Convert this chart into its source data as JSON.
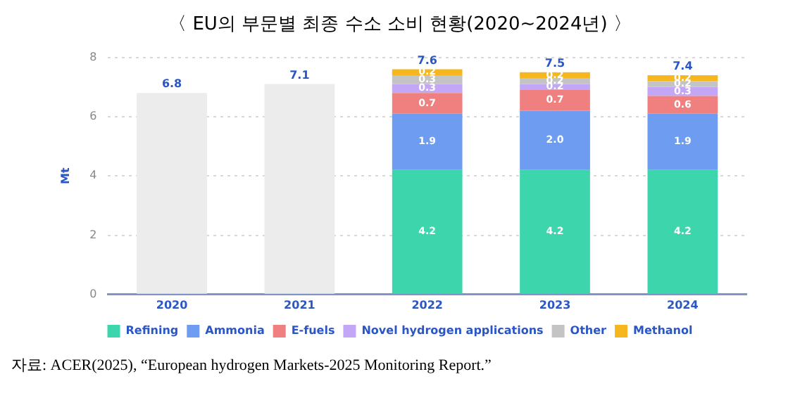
{
  "chart_data": {
    "type": "bar",
    "title": "〈 EU의 부문별 최종 수소 소비 현황(2020~2024년) 〉",
    "ylabel": "Mt",
    "categories": [
      "2020",
      "2021",
      "2022",
      "2023",
      "2024"
    ],
    "stacked": true,
    "series": [
      {
        "color": "#ececec",
        "values": [
          6.8,
          7.1,
          null,
          null,
          null
        ],
        "value_labels": [
          "6.8",
          "7.1",
          null,
          null,
          null
        ]
      },
      {
        "name": "Refining",
        "color": "#3dd6ac",
        "values": [
          null,
          null,
          4.2,
          4.2,
          4.2
        ],
        "value_labels": [
          null,
          null,
          "4.2",
          "4.2",
          "4.2"
        ]
      },
      {
        "name": "Ammonia",
        "color": "#6d9cf0",
        "values": [
          null,
          null,
          1.9,
          2.0,
          1.9
        ],
        "value_labels": [
          null,
          null,
          "1.9",
          "2.0",
          "1.9"
        ]
      },
      {
        "name": "E-fuels",
        "color": "#f07f7f",
        "values": [
          null,
          null,
          0.7,
          0.7,
          0.6
        ],
        "value_labels": [
          null,
          null,
          "0.7",
          "0.7",
          "0.6"
        ]
      },
      {
        "name": "Novel hydrogen applications",
        "color": "#c3a6f5",
        "values": [
          null,
          null,
          0.3,
          0.2,
          0.3
        ],
        "value_labels": [
          null,
          null,
          "0.3",
          "0.2",
          "0.3"
        ]
      },
      {
        "name": "Other",
        "color": "#c4c4c4",
        "values": [
          null,
          null,
          0.3,
          0.2,
          0.2
        ],
        "value_labels": [
          null,
          null,
          "0.3",
          "0.2",
          "0.2"
        ]
      },
      {
        "name": "Methanol",
        "color": "#f5b71d",
        "values": [
          null,
          null,
          0.2,
          0.2,
          0.2
        ],
        "value_labels": [
          null,
          null,
          "0.2",
          "0.2",
          "0.2"
        ]
      }
    ],
    "totals": [
      null,
      null,
      "7.6",
      "7.5",
      "7.4"
    ],
    "ylim": [
      0,
      8
    ],
    "yticks": [
      0,
      2,
      4,
      6,
      8
    ],
    "grid": "y",
    "legend": "bottom",
    "annotations": [
      "자료: ACER(2025), “European hydrogen Markets-2025 Monitoring Report.”"
    ]
  }
}
